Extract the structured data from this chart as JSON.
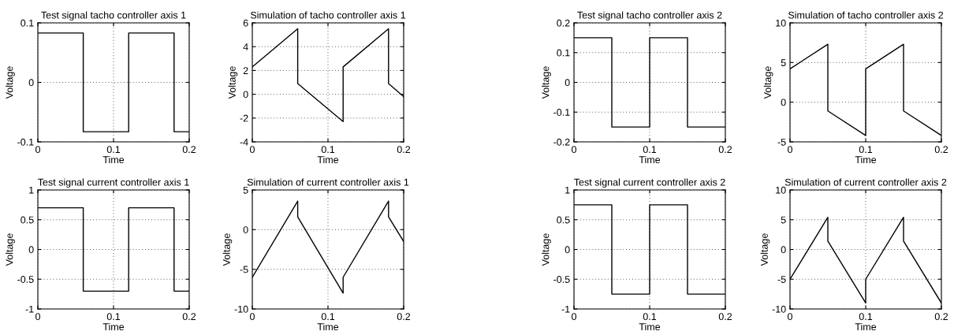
{
  "chart_data": [
    {
      "type": "line",
      "title": "Test signal tacho controller axis 1",
      "xlabel": "Time",
      "ylabel": "Voltage",
      "color": "#000000",
      "grid": true,
      "xlim": [
        0,
        0.2
      ],
      "xticks": [
        0,
        0.1,
        0.2
      ],
      "ylim": [
        -0.1,
        0.1
      ],
      "yticks": [
        -0.1,
        0,
        0.1
      ],
      "x": [
        0,
        0.06,
        0.06,
        0.12,
        0.12,
        0.18,
        0.18,
        0.2
      ],
      "values": [
        0.083,
        0.083,
        -0.083,
        -0.083,
        0.083,
        0.083,
        -0.083,
        -0.083
      ]
    },
    {
      "type": "line",
      "title": "Simulation of tacho controller axis 1",
      "xlabel": "Time",
      "ylabel": "Voltage",
      "color": "#000000",
      "grid": true,
      "xlim": [
        0,
        0.2
      ],
      "xticks": [
        0,
        0.1,
        0.2
      ],
      "ylim": [
        -4,
        6
      ],
      "yticks": [
        -4,
        -2,
        0,
        2,
        4,
        6
      ],
      "x": [
        0,
        0.06,
        0.06,
        0.12,
        0.12,
        0.18,
        0.18,
        0.2
      ],
      "values": [
        2.3,
        5.5,
        0.9,
        -2.3,
        2.3,
        5.5,
        0.9,
        -0.2
      ]
    },
    {
      "type": "line",
      "title": "Test signal tacho controller axis 2",
      "xlabel": "Time",
      "ylabel": "Voltage",
      "color": "#000000",
      "grid": true,
      "xlim": [
        0,
        0.2
      ],
      "xticks": [
        0,
        0.1,
        0.2
      ],
      "ylim": [
        -0.2,
        0.2
      ],
      "yticks": [
        -0.2,
        -0.1,
        0,
        0.1,
        0.2
      ],
      "x": [
        0,
        0.05,
        0.05,
        0.1,
        0.1,
        0.15,
        0.15,
        0.2
      ],
      "values": [
        0.15,
        0.15,
        -0.15,
        -0.15,
        0.15,
        0.15,
        -0.15,
        -0.15
      ]
    },
    {
      "type": "line",
      "title": "Simulation of tacho controller axis 2",
      "xlabel": "Time",
      "ylabel": "Voltage",
      "color": "#000000",
      "grid": true,
      "xlim": [
        0,
        0.2
      ],
      "xticks": [
        0,
        0.1,
        0.2
      ],
      "ylim": [
        -5,
        10
      ],
      "yticks": [
        -5,
        0,
        5,
        10
      ],
      "x": [
        0,
        0.05,
        0.05,
        0.1,
        0.1,
        0.15,
        0.15,
        0.2
      ],
      "values": [
        4.2,
        7.3,
        -1.1,
        -4.2,
        4.2,
        7.3,
        -1.1,
        -4.2
      ]
    },
    {
      "type": "line",
      "title": "Test signal current controller axis 1",
      "xlabel": "Time",
      "ylabel": "Voltage",
      "color": "#000000",
      "grid": true,
      "xlim": [
        0,
        0.2
      ],
      "xticks": [
        0,
        0.1,
        0.2
      ],
      "ylim": [
        -1,
        1
      ],
      "yticks": [
        -1,
        -0.5,
        0,
        0.5,
        1
      ],
      "x": [
        0,
        0.06,
        0.06,
        0.12,
        0.12,
        0.18,
        0.18,
        0.2
      ],
      "values": [
        0.7,
        0.7,
        -0.7,
        -0.7,
        0.7,
        0.7,
        -0.7,
        -0.7
      ]
    },
    {
      "type": "line",
      "title": "Simulation of current controller axis 1",
      "xlabel": "Time",
      "ylabel": "Voltage",
      "color": "#000000",
      "grid": true,
      "xlim": [
        0,
        0.2
      ],
      "xticks": [
        0,
        0.1,
        0.2
      ],
      "ylim": [
        -10,
        5
      ],
      "yticks": [
        -10,
        -5,
        0,
        5
      ],
      "x": [
        0,
        0.06,
        0.06,
        0.12,
        0.12,
        0.18,
        0.18,
        0.2
      ],
      "values": [
        -6,
        3.6,
        1.6,
        -8,
        -6,
        3.6,
        1.6,
        -1.5
      ]
    },
    {
      "type": "line",
      "title": "Test signal current controller axis 2",
      "xlabel": "Time",
      "ylabel": "Voltage",
      "color": "#000000",
      "grid": true,
      "xlim": [
        0,
        0.2
      ],
      "xticks": [
        0,
        0.1,
        0.2
      ],
      "ylim": [
        -1,
        1
      ],
      "yticks": [
        -1,
        -0.5,
        0,
        0.5,
        1
      ],
      "x": [
        0,
        0.05,
        0.05,
        0.1,
        0.1,
        0.15,
        0.15,
        0.2
      ],
      "values": [
        0.75,
        0.75,
        -0.75,
        -0.75,
        0.75,
        0.75,
        -0.75,
        -0.75
      ]
    },
    {
      "type": "line",
      "title": "Simulation of current controller axis 2",
      "xlabel": "Time",
      "ylabel": "Voltage",
      "color": "#000000",
      "grid": true,
      "xlim": [
        0,
        0.2
      ],
      "xticks": [
        0,
        0.1,
        0.2
      ],
      "ylim": [
        -10,
        10
      ],
      "yticks": [
        -10,
        -5,
        0,
        5,
        10
      ],
      "x": [
        0,
        0.05,
        0.05,
        0.1,
        0.1,
        0.15,
        0.15,
        0.2
      ],
      "values": [
        -5,
        5.4,
        1.4,
        -9,
        -5,
        5.4,
        1.4,
        -9
      ]
    }
  ]
}
